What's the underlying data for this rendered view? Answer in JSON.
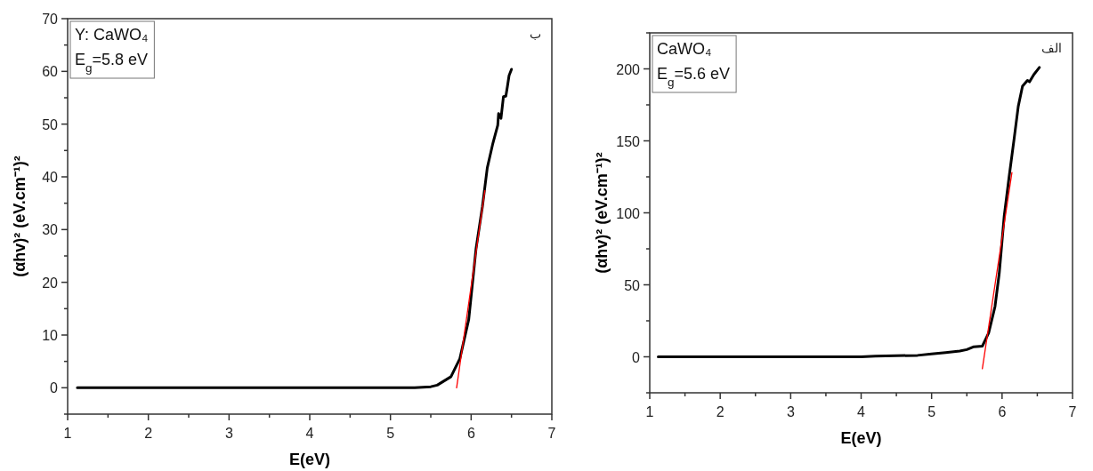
{
  "chart_data": [
    {
      "type": "line",
      "xlabel": "E(eV)",
      "ylabel": "(αhv)² (eV.cm⁻¹)²",
      "xlim": [
        1,
        7
      ],
      "ylim": [
        -5,
        70
      ],
      "xticks": [
        1,
        {
          "value": 1.5,
          "label": null
        },
        2,
        {
          "value": 2.5,
          "label": null
        },
        3,
        {
          "value": 3.5,
          "label": null
        },
        4,
        {
          "value": 4.5,
          "label": null
        },
        5,
        {
          "value": 5.5,
          "label": null
        },
        6,
        {
          "value": 6.5,
          "label": null
        },
        7
      ],
      "yticks": [
        {
          "value": -5,
          "label": null
        },
        0,
        {
          "value": 5,
          "label": null
        },
        10,
        {
          "value": 15,
          "label": null
        },
        20,
        {
          "value": 25,
          "label": null
        },
        30,
        {
          "value": 35,
          "label": null
        },
        40,
        {
          "value": 45,
          "label": null
        },
        50,
        {
          "value": 55,
          "label": null
        },
        60,
        {
          "value": 65,
          "label": null
        },
        70
      ],
      "grid": false,
      "marker": "none",
      "line_style": "solid",
      "annotations": [
        "Y: CaWO₄",
        "E$_{g}$=5.8 eV",
        "ب"
      ],
      "series": [
        {
          "color": "#000000",
          "x": [
            1.12,
            2,
            3,
            4,
            5,
            5.3,
            5.5,
            5.58,
            5.75,
            5.86,
            5.97,
            6.06,
            6.14,
            6.2,
            6.27,
            6.33,
            6.34,
            6.37,
            6.4,
            6.43,
            6.45,
            6.47,
            6.5
          ],
          "values": [
            0,
            0,
            0,
            0,
            0,
            0,
            0.2,
            0.5,
            2.1,
            5.5,
            12.9,
            26.3,
            34.4,
            41.7,
            46.4,
            49.8,
            52,
            51.1,
            55.2,
            55.3,
            57.2,
            59.2,
            60.4
          ]
        },
        {
          "color": "#ff0000",
          "x": [
            5.82,
            6.17
          ],
          "values": [
            0,
            37.4
          ]
        }
      ]
    },
    {
      "type": "line",
      "xlabel": "E(eV)",
      "ylabel": "(αhv)² (eV.cm⁻¹)²",
      "xlim": [
        1,
        7
      ],
      "ylim": [
        -25,
        225
      ],
      "xticks": [
        1,
        {
          "value": 1.5,
          "label": null
        },
        2,
        {
          "value": 2.5,
          "label": null
        },
        3,
        {
          "value": 3.5,
          "label": null
        },
        4,
        {
          "value": 4.5,
          "label": null
        },
        5,
        {
          "value": 5.5,
          "label": null
        },
        6,
        {
          "value": 6.5,
          "label": null
        },
        7
      ],
      "yticks": [
        {
          "value": -25,
          "label": null
        },
        0,
        {
          "value": 25,
          "label": null
        },
        50,
        {
          "value": 75,
          "label": null
        },
        100,
        {
          "value": 125,
          "label": null
        },
        150,
        {
          "value": 175,
          "label": null
        },
        200,
        {
          "value": 225,
          "label": null
        }
      ],
      "grid": false,
      "marker": "none",
      "line_style": "solid",
      "annotations": [
        "CaWO₄",
        "E$_{g}$=5.6 eV",
        "الف"
      ],
      "series": [
        {
          "color": "#000000",
          "x": [
            1.12,
            2,
            3,
            4,
            4.2,
            4.8,
            5,
            5.2,
            5.4,
            5.5,
            5.6,
            5.72,
            5.81,
            5.9,
            5.96,
            6.03,
            6.1,
            6.17,
            6.23,
            6.29,
            6.36,
            6.39,
            6.45,
            6.53
          ],
          "values": [
            0,
            0,
            0,
            0,
            0.5,
            1,
            2,
            3,
            4,
            5,
            7,
            7.4,
            16.6,
            35,
            58,
            97.6,
            125,
            151,
            174,
            188,
            192,
            191,
            196,
            201
          ]
        },
        {
          "color": "#ff0000",
          "x": [
            5.72,
            6.14
          ],
          "values": [
            -8.3,
            128
          ]
        }
      ]
    }
  ]
}
